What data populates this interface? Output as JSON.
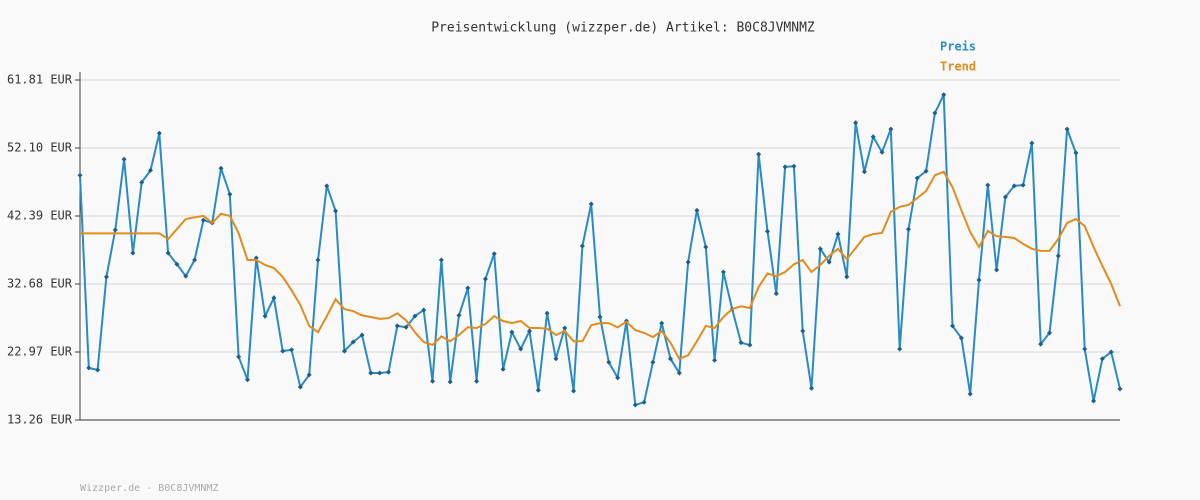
{
  "chart_data": {
    "type": "line",
    "title": "Preisentwicklung (wizzper.de) Artikel: B0C8JVMNMZ",
    "source": "Wizzper.de - B0C8JVMNMZ",
    "ylim": [
      13.26,
      61.81
    ],
    "yticks": [
      {
        "value": 13.26,
        "label": "13.26 EUR"
      },
      {
        "value": 22.97,
        "label": "22.97 EUR"
      },
      {
        "value": 32.68,
        "label": "32.68 EUR"
      },
      {
        "value": 42.39,
        "label": "42.39 EUR"
      },
      {
        "value": 52.1,
        "label": "52.10 EUR"
      },
      {
        "value": 61.81,
        "label": "61.81 EUR"
      }
    ],
    "grid": true,
    "series": [
      {
        "name": "Preis",
        "color": "#2a8bc4",
        "markers": true,
        "values": [
          48.2,
          20.7,
          20.4,
          33.7,
          40.4,
          50.5,
          37.1,
          47.2,
          48.9,
          54.2,
          37.1,
          35.5,
          33.8,
          36.1,
          41.8,
          41.4,
          49.2,
          45.5,
          22.3,
          19.0,
          36.4,
          28.1,
          30.7,
          23.1,
          23.3,
          17.97,
          19.7,
          36.1,
          46.7,
          43.1,
          23.1,
          24.4,
          25.4,
          19.97,
          19.97,
          20.1,
          26.7,
          26.5,
          28.1,
          28.97,
          18.8,
          36.1,
          18.7,
          28.2,
          32.1,
          18.8,
          33.4,
          37.0,
          20.5,
          25.8,
          23.4,
          25.97,
          17.5,
          28.5,
          22.0,
          26.4,
          17.4,
          38.1,
          44.1,
          27.97,
          21.5,
          19.3,
          27.4,
          15.4,
          15.8,
          21.5,
          27.1,
          22.0,
          19.97,
          35.8,
          43.2,
          37.96,
          21.8,
          34.4,
          29.1,
          24.3,
          23.97,
          51.2,
          40.2,
          31.3,
          49.4,
          49.5,
          25.97,
          17.8,
          37.7,
          35.8,
          39.8,
          33.7,
          55.7,
          48.7,
          53.7,
          51.5,
          54.8,
          23.4,
          40.5,
          47.8,
          48.8,
          57.1,
          59.7,
          26.7,
          24.97,
          16.97,
          33.25,
          46.8,
          34.7,
          45.1,
          46.7,
          46.8,
          52.8,
          24.1,
          25.7,
          36.7,
          54.8,
          51.4,
          23.4,
          15.97,
          22.0,
          22.97,
          17.7
        ]
      },
      {
        "name": "Trend",
        "color": "#e08c1e",
        "markers": false,
        "values": [
          39.9,
          39.9,
          39.9,
          39.9,
          39.9,
          39.9,
          39.9,
          39.9,
          39.9,
          39.9,
          39.1,
          40.5,
          41.96,
          42.2,
          42.4,
          41.4,
          42.7,
          42.4,
          39.96,
          36.1,
          36.1,
          35.4,
          34.97,
          33.7,
          31.8,
          29.7,
          26.7,
          25.8,
          28.1,
          30.5,
          29.1,
          28.8,
          28.2,
          27.97,
          27.7,
          27.8,
          28.5,
          27.5,
          25.8,
          24.4,
          23.97,
          25.2,
          24.5,
          25.4,
          26.5,
          26.4,
          26.97,
          28.1,
          27.4,
          27.1,
          27.4,
          26.4,
          26.4,
          26.3,
          25.4,
          25.97,
          24.5,
          24.5,
          26.8,
          27.1,
          27.1,
          26.5,
          27.3,
          26.1,
          25.7,
          25.1,
          25.97,
          24.3,
          22.0,
          22.5,
          24.5,
          26.7,
          26.4,
          27.97,
          29.1,
          29.5,
          29.25,
          32.25,
          34.2,
          33.8,
          34.4,
          35.5,
          36.1,
          34.4,
          35.4,
          36.7,
          37.7,
          36.25,
          37.8,
          39.4,
          39.8,
          39.96,
          42.96,
          43.7,
          43.96,
          44.96,
          45.96,
          48.2,
          48.7,
          46.5,
          43.2,
          40.1,
          37.96,
          40.25,
          39.5,
          39.4,
          39.25,
          38.4,
          37.7,
          37.4,
          37.4,
          39.1,
          41.4,
          41.96,
          40.96,
          37.96,
          35.25,
          32.7,
          29.5
        ]
      }
    ]
  }
}
